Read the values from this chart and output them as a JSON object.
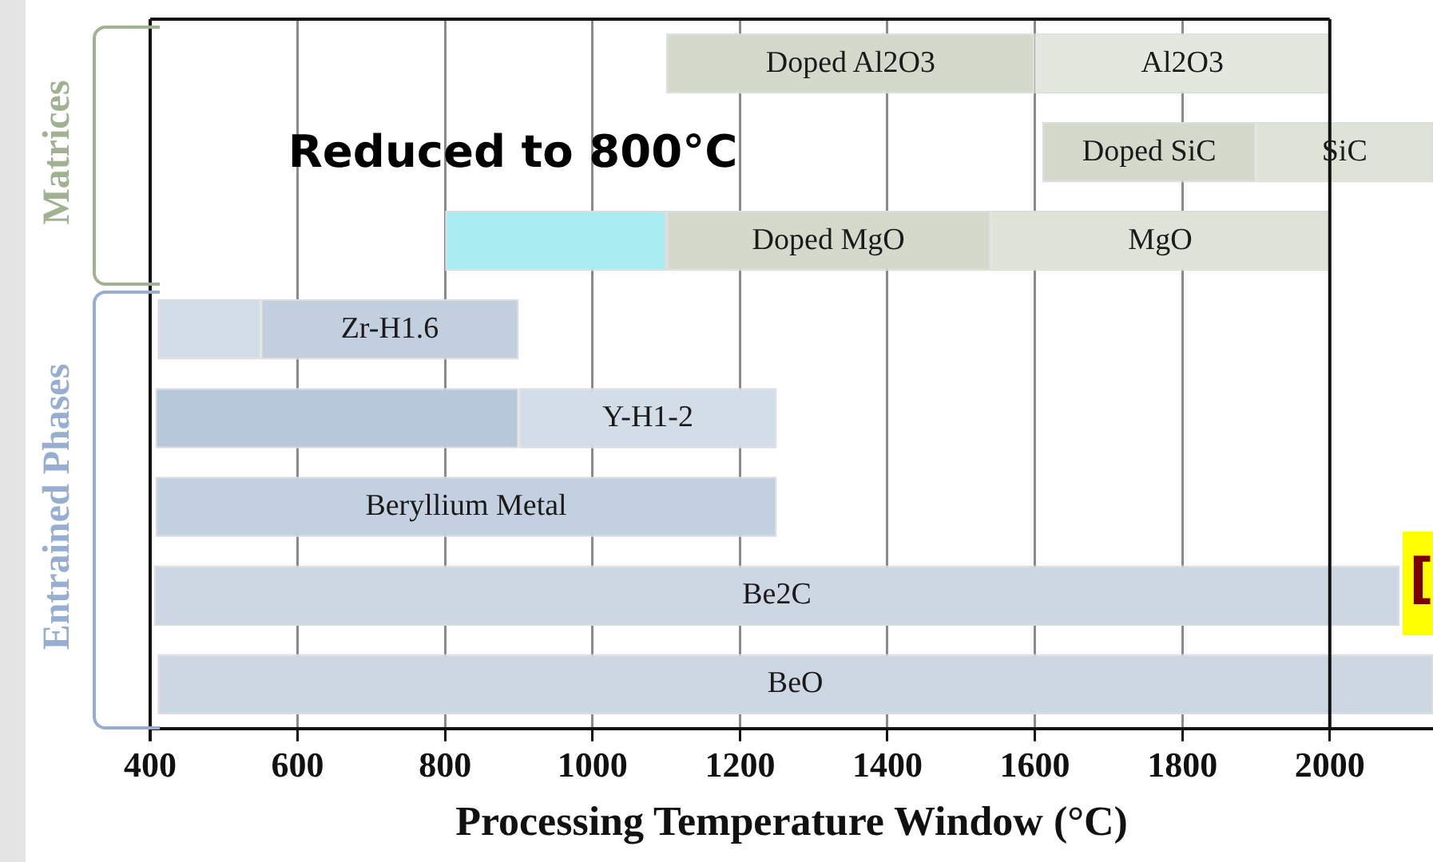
{
  "chart_data": {
    "type": "bar",
    "orientation": "horizontal",
    "xlabel": "Processing Temperature Window (°C)",
    "categories": [
      null,
      null,
      null,
      null,
      null,
      null,
      null,
      null
    ],
    "xlim": [
      400,
      2140
    ],
    "xticks": [
      400,
      600,
      800,
      1000,
      1200,
      1400,
      1600,
      1800,
      2000
    ],
    "grid": "x",
    "tick_labels": "x",
    "series": [
      {
        "values": [
          500,
          290,
          440,
          140,
          493,
          843,
          1690,
          1730
        ],
        "base": [
          1100,
          1610,
          1100,
          410,
          407,
          407,
          405,
          410
        ],
        "colors": [
          "#d3dacb",
          "#d3dacb",
          "#d3dacb",
          "#d3dde8",
          "#b8c8db",
          "#c3d0df",
          "#ccd7e3",
          "#ccd7e3"
        ],
        "value_labels": [
          "Doped Al2O3",
          "Doped SiC",
          "Doped MgO",
          null,
          null,
          "Beryllium Metal",
          "Be2C",
          "BeO"
        ]
      },
      {
        "values": [
          400,
          240,
          460,
          350,
          350,
          null,
          null,
          null
        ],
        "base": [
          1600,
          1900,
          1540,
          550,
          900,
          null,
          null,
          null
        ],
        "colors": [
          "#e3e8de",
          "#dde3d6",
          "#dde3d6",
          "#c1cfdf",
          "#d3dde8",
          "#ffffff",
          "#ffffff",
          "#ffffff"
        ],
        "value_labels": [
          "Al2O3",
          "SiC",
          "MgO",
          "Zr-H1.6",
          "Y-H1-2",
          null,
          null,
          null
        ]
      },
      {
        "values": [
          null,
          null,
          300,
          null,
          null,
          null,
          null,
          null
        ],
        "base": [
          null,
          null,
          800,
          null,
          null,
          null,
          null,
          null
        ],
        "colors": [
          "#a8eef0",
          "#a8eef0",
          "#a8eef0",
          "#a8eef0",
          "#a8eef0",
          "#a8eef0",
          "#a8eef0",
          "#a8eef0"
        ]
      }
    ],
    "ref_lines": [
      {
        "axis": "x",
        "value": 2000,
        "color": "#111111"
      }
    ],
    "annotations": [
      "Reduced to 800°C",
      "Matrices",
      "Entrained Phases",
      "["
    ]
  }
}
